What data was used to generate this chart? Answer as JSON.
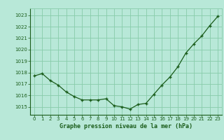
{
  "x": [
    0,
    1,
    2,
    3,
    4,
    5,
    6,
    7,
    8,
    9,
    10,
    11,
    12,
    13,
    14,
    15,
    16,
    17,
    18,
    19,
    20,
    21,
    22,
    23
  ],
  "y": [
    1017.7,
    1017.9,
    1017.3,
    1016.9,
    1016.3,
    1015.9,
    1015.6,
    1015.6,
    1015.6,
    1015.7,
    1015.1,
    1015.0,
    1014.8,
    1015.2,
    1015.3,
    1016.1,
    1016.9,
    1017.6,
    1018.5,
    1019.7,
    1020.5,
    1021.2,
    1022.1,
    1022.9
  ],
  "line_color": "#1a5c1a",
  "marker": "+",
  "marker_size": 3.5,
  "marker_edge_width": 1.0,
  "bg_color": "#b8e8d8",
  "grid_color": "#88ccaa",
  "xlabel": "Graphe pression niveau de la mer (hPa)",
  "xlabel_color": "#1a5c1a",
  "ylabel_ticks": [
    1015,
    1016,
    1017,
    1018,
    1019,
    1020,
    1021,
    1022,
    1023
  ],
  "ylim": [
    1014.3,
    1023.6
  ],
  "xlim": [
    -0.5,
    23.5
  ],
  "tick_label_color": "#1a5c1a",
  "xtick_labels": [
    "0",
    "1",
    "2",
    "3",
    "4",
    "5",
    "6",
    "7",
    "8",
    "9",
    "10",
    "11",
    "12",
    "13",
    "14",
    "15",
    "16",
    "17",
    "18",
    "19",
    "20",
    "21",
    "22",
    "23"
  ],
  "line_width": 0.9,
  "spine_color": "#1a5c1a",
  "tick_fontsize": 5.0,
  "xlabel_fontsize": 6.0
}
